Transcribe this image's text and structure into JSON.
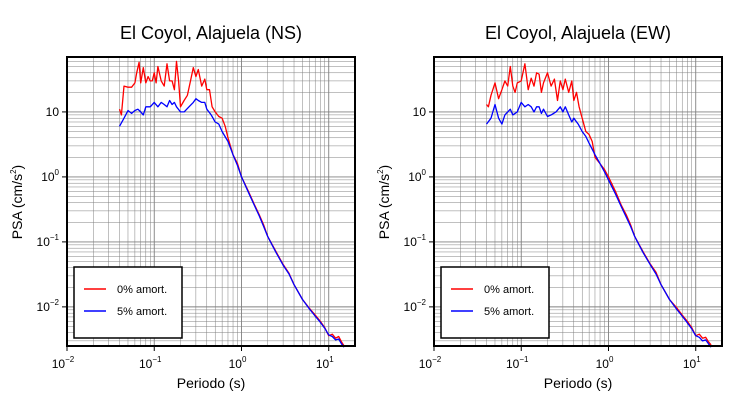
{
  "chart_data": [
    {
      "type": "line",
      "title": "El Coyol, Alajuela (NS)",
      "xlabel": "Periodo (s)",
      "ylabel_base": "PSA (cm/s",
      "ylabel_exp": "2",
      "ylabel_close": ")",
      "xscale": "log",
      "yscale": "log",
      "xlim": [
        0.01,
        20
      ],
      "ylim": [
        0.0025,
        70
      ],
      "xticks": [
        {
          "base": "10",
          "exp": "−2",
          "value": 0.01
        },
        {
          "base": "10",
          "exp": "−1",
          "value": 0.1
        },
        {
          "base": "10",
          "exp": "0",
          "value": 1
        },
        {
          "base": "10",
          "exp": "1",
          "value": 10
        }
      ],
      "yticks": [
        {
          "base": "10",
          "exp": "−2",
          "value": 0.01
        },
        {
          "base": "10",
          "exp": "−1",
          "value": 0.1
        },
        {
          "base": "10",
          "exp": "0",
          "value": 1
        },
        {
          "base": "10",
          "exp": "",
          "value": 10
        }
      ],
      "grid": true,
      "legend_position": "bottom-left",
      "series": [
        {
          "name": "0% amort.",
          "color": "#ff0000",
          "x": [
            0.04,
            0.042,
            0.045,
            0.05,
            0.055,
            0.06,
            0.063,
            0.067,
            0.07,
            0.075,
            0.08,
            0.085,
            0.09,
            0.095,
            0.1,
            0.105,
            0.11,
            0.12,
            0.13,
            0.14,
            0.15,
            0.16,
            0.17,
            0.18,
            0.19,
            0.2,
            0.22,
            0.24,
            0.26,
            0.28,
            0.3,
            0.32,
            0.35,
            0.38,
            0.4,
            0.43,
            0.46,
            0.5,
            0.55,
            0.6,
            0.65,
            0.7,
            0.8,
            0.9,
            1.0,
            1.2,
            1.4,
            1.6,
            1.8,
            2.0,
            2.5,
            3,
            3.5,
            4,
            5,
            6,
            7,
            8,
            9,
            10,
            11,
            12,
            13,
            14,
            15
          ],
          "y": [
            11,
            9,
            25,
            24,
            24,
            28,
            40,
            58,
            28,
            48,
            28,
            35,
            30,
            30,
            40,
            28,
            50,
            30,
            25,
            55,
            30,
            30,
            22,
            60,
            30,
            12,
            15,
            18,
            30,
            48,
            35,
            45,
            25,
            32,
            22,
            22,
            12,
            10,
            8.5,
            8,
            6,
            4,
            2.2,
            1.6,
            1.0,
            0.6,
            0.38,
            0.26,
            0.18,
            0.12,
            0.07,
            0.045,
            0.033,
            0.022,
            0.013,
            0.0095,
            0.0075,
            0.006,
            0.0048,
            0.0036,
            0.0038,
            0.0033,
            0.0035,
            0.0029,
            0.0025
          ]
        },
        {
          "name": "5% amort.",
          "color": "#0000ff",
          "x": [
            0.04,
            0.045,
            0.05,
            0.055,
            0.06,
            0.065,
            0.07,
            0.075,
            0.08,
            0.09,
            0.1,
            0.11,
            0.12,
            0.13,
            0.14,
            0.15,
            0.16,
            0.17,
            0.18,
            0.2,
            0.22,
            0.25,
            0.28,
            0.3,
            0.32,
            0.35,
            0.38,
            0.4,
            0.45,
            0.5,
            0.55,
            0.6,
            0.7,
            0.8,
            0.9,
            1.0,
            1.2,
            1.4,
            1.6,
            1.8,
            2.0,
            2.5,
            3,
            3.5,
            4,
            5,
            6,
            7,
            8,
            9,
            10,
            11,
            12,
            13,
            14,
            15
          ],
          "y": [
            6,
            8,
            10.5,
            9.5,
            10.5,
            11,
            10,
            9,
            12,
            12,
            14,
            12,
            14,
            13,
            12,
            15,
            13,
            14,
            12,
            10,
            10,
            12,
            14,
            16,
            15,
            14,
            14,
            11,
            9,
            7,
            6.5,
            5,
            3.5,
            2.2,
            1.5,
            1.0,
            0.58,
            0.37,
            0.25,
            0.17,
            0.12,
            0.068,
            0.044,
            0.032,
            0.022,
            0.013,
            0.0093,
            0.0072,
            0.0058,
            0.0047,
            0.0037,
            0.0035,
            0.0031,
            0.0032,
            0.0027,
            0.0024
          ]
        }
      ]
    },
    {
      "type": "line",
      "title": "El Coyol, Alajuela (EW)",
      "xlabel": "Periodo (s)",
      "ylabel_base": "PSA (cm/s",
      "ylabel_exp": "2",
      "ylabel_close": ")",
      "xscale": "log",
      "yscale": "log",
      "xlim": [
        0.01,
        20
      ],
      "ylim": [
        0.0025,
        70
      ],
      "xticks": [
        {
          "base": "10",
          "exp": "−2",
          "value": 0.01
        },
        {
          "base": "10",
          "exp": "−1",
          "value": 0.1
        },
        {
          "base": "10",
          "exp": "0",
          "value": 1
        },
        {
          "base": "10",
          "exp": "1",
          "value": 10
        }
      ],
      "yticks": [
        {
          "base": "10",
          "exp": "−2",
          "value": 0.01
        },
        {
          "base": "10",
          "exp": "−1",
          "value": 0.1
        },
        {
          "base": "10",
          "exp": "0",
          "value": 1
        },
        {
          "base": "10",
          "exp": "",
          "value": 10
        }
      ],
      "grid": true,
      "legend_position": "bottom-left",
      "series": [
        {
          "name": "0% amort.",
          "color": "#ff0000",
          "x": [
            0.04,
            0.042,
            0.045,
            0.05,
            0.055,
            0.06,
            0.065,
            0.07,
            0.075,
            0.08,
            0.085,
            0.09,
            0.1,
            0.11,
            0.12,
            0.13,
            0.14,
            0.15,
            0.16,
            0.17,
            0.18,
            0.2,
            0.22,
            0.24,
            0.26,
            0.28,
            0.3,
            0.32,
            0.35,
            0.38,
            0.4,
            0.43,
            0.46,
            0.5,
            0.55,
            0.6,
            0.65,
            0.7,
            0.8,
            0.9,
            1.0,
            1.2,
            1.4,
            1.6,
            1.8,
            2.0,
            2.5,
            3,
            3.5,
            4,
            5,
            6,
            7,
            8,
            9,
            10,
            11,
            12,
            13,
            14,
            15
          ],
          "y": [
            13,
            12,
            18,
            28,
            16,
            22,
            30,
            25,
            50,
            25,
            20,
            28,
            30,
            55,
            22,
            33,
            25,
            40,
            38,
            20,
            28,
            40,
            25,
            32,
            15,
            30,
            22,
            32,
            20,
            30,
            15,
            20,
            12,
            8,
            5,
            4.5,
            3.5,
            2.0,
            1.6,
            1.3,
            1.0,
            0.6,
            0.37,
            0.26,
            0.18,
            0.12,
            0.07,
            0.046,
            0.034,
            0.022,
            0.013,
            0.0098,
            0.0075,
            0.006,
            0.0048,
            0.0036,
            0.0038,
            0.0033,
            0.0034,
            0.0029,
            0.0026
          ]
        },
        {
          "name": "5% amort.",
          "color": "#0000ff",
          "x": [
            0.04,
            0.045,
            0.05,
            0.055,
            0.06,
            0.065,
            0.07,
            0.075,
            0.08,
            0.09,
            0.1,
            0.11,
            0.12,
            0.13,
            0.14,
            0.15,
            0.16,
            0.17,
            0.18,
            0.2,
            0.22,
            0.25,
            0.28,
            0.3,
            0.32,
            0.35,
            0.38,
            0.4,
            0.45,
            0.5,
            0.55,
            0.6,
            0.7,
            0.8,
            0.9,
            1.0,
            1.2,
            1.4,
            1.6,
            1.8,
            2.0,
            2.5,
            3,
            3.5,
            4,
            5,
            6,
            7,
            8,
            9,
            10,
            11,
            12,
            13,
            14,
            15
          ],
          "y": [
            6.5,
            8,
            13,
            8,
            6.5,
            9,
            10,
            11,
            9,
            10,
            14,
            12,
            13,
            12,
            10,
            12,
            12,
            9.5,
            11,
            8.5,
            9,
            10,
            12,
            10,
            12,
            9,
            7,
            8,
            6.5,
            5,
            4.2,
            3.3,
            2.2,
            1.6,
            1.2,
            0.9,
            0.55,
            0.35,
            0.24,
            0.17,
            0.12,
            0.068,
            0.045,
            0.032,
            0.022,
            0.013,
            0.0093,
            0.0072,
            0.0057,
            0.0046,
            0.0036,
            0.0034,
            0.003,
            0.0031,
            0.0027,
            0.0024
          ]
        }
      ]
    }
  ]
}
